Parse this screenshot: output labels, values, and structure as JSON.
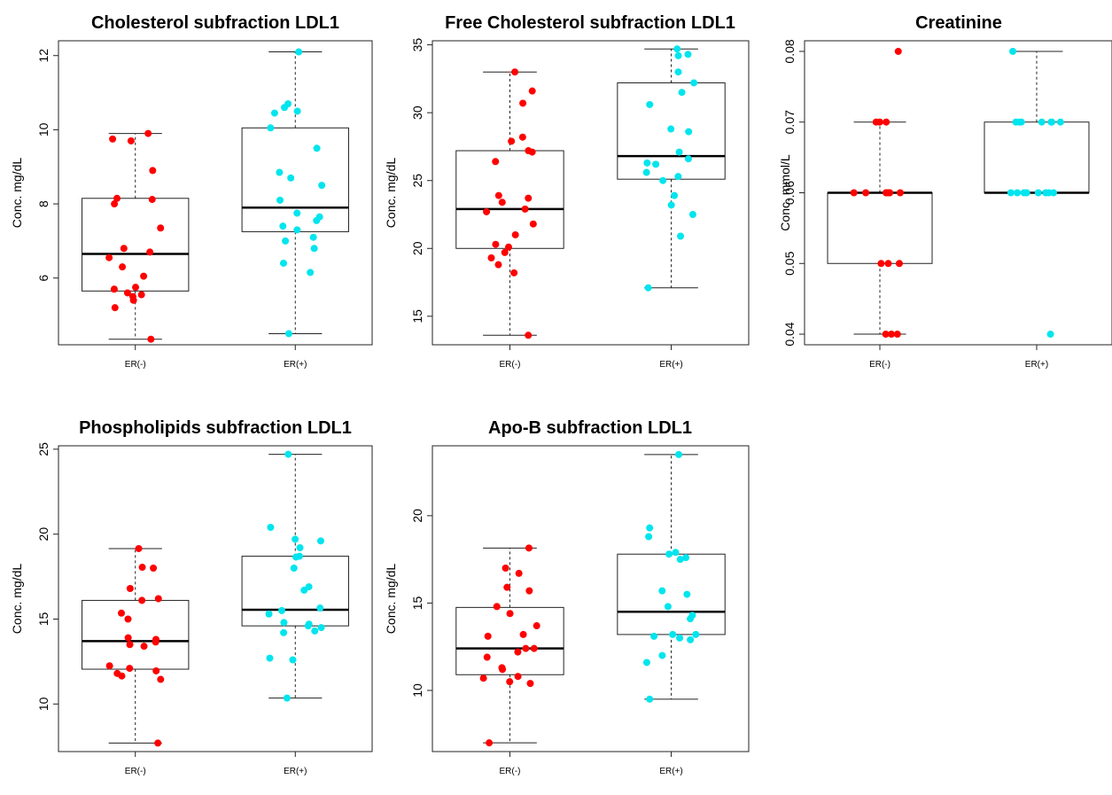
{
  "colors": {
    "er_neg": "#ff0000",
    "er_pos": "#00e5ee"
  },
  "chart_data": [
    {
      "type": "boxplot",
      "title": "Cholesterol subfraction LDL1",
      "ylabel": "Conc. mg/dL",
      "categories": [
        "ER(-)",
        "ER(+)"
      ],
      "ylim": [
        4.2,
        12.4
      ],
      "yticks": [
        6,
        8,
        10,
        12
      ],
      "boxes": [
        {
          "name": "ER(-)",
          "min": 4.35,
          "q1": 5.65,
          "median": 6.65,
          "q3": 8.15,
          "max": 9.9,
          "points": [
            9.9,
            9.75,
            9.7,
            8.9,
            8.15,
            8.12,
            8.0,
            7.35,
            6.8,
            6.7,
            6.55,
            6.3,
            6.05,
            5.75,
            5.7,
            5.6,
            5.55,
            5.5,
            5.4,
            5.2,
            4.35
          ]
        },
        {
          "name": "ER(+)",
          "min": 4.5,
          "q1": 7.25,
          "median": 7.9,
          "q3": 10.05,
          "max": 12.1,
          "points": [
            12.1,
            10.7,
            10.6,
            10.5,
            10.45,
            10.05,
            9.5,
            8.85,
            8.7,
            8.5,
            8.1,
            7.75,
            7.65,
            7.55,
            7.4,
            7.3,
            7.1,
            7.0,
            6.8,
            6.4,
            6.15,
            4.5
          ]
        }
      ]
    },
    {
      "type": "boxplot",
      "title": "Free Cholesterol subfraction LDL1",
      "ylabel": "Conc. mg/dL",
      "categories": [
        "ER(-)",
        "ER(+)"
      ],
      "ylim": [
        12.9,
        35.3
      ],
      "yticks": [
        15,
        20,
        25,
        30,
        35
      ],
      "boxes": [
        {
          "name": "ER(-)",
          "min": 13.6,
          "q1": 20.0,
          "median": 22.9,
          "q3": 27.2,
          "max": 33.0,
          "points": [
            33.0,
            31.6,
            30.7,
            28.2,
            27.9,
            27.2,
            27.1,
            26.4,
            23.9,
            23.7,
            23.4,
            22.9,
            22.7,
            21.8,
            21.0,
            20.3,
            20.1,
            19.7,
            19.3,
            18.8,
            18.2,
            13.6
          ]
        },
        {
          "name": "ER(+)",
          "min": 17.1,
          "q1": 25.1,
          "median": 26.8,
          "q3": 32.2,
          "max": 34.7,
          "points": [
            34.7,
            34.3,
            34.2,
            33.0,
            32.2,
            31.5,
            30.6,
            28.8,
            28.6,
            27.1,
            26.6,
            26.3,
            26.2,
            25.6,
            25.3,
            25.0,
            23.9,
            23.2,
            22.5,
            20.9,
            17.1
          ]
        }
      ]
    },
    {
      "type": "boxplot",
      "title": "Creatinine",
      "ylabel": "Conc. mmol/L",
      "categories": [
        "ER(-)",
        "ER(+)"
      ],
      "ylim": [
        0.0385,
        0.0815
      ],
      "yticks": [
        0.04,
        0.05,
        0.06,
        0.07,
        0.08
      ],
      "ytick_labels": [
        "0.04",
        "0.05",
        "0.06",
        "0.07",
        "0.08"
      ],
      "boxes": [
        {
          "name": "ER(-)",
          "min": 0.04,
          "q1": 0.05,
          "median": 0.06,
          "q3": 0.06,
          "max": 0.07,
          "points": [
            0.08,
            0.07,
            0.07,
            0.07,
            0.06,
            0.06,
            0.06,
            0.06,
            0.06,
            0.06,
            0.06,
            0.05,
            0.05,
            0.05,
            0.04,
            0.04,
            0.04
          ]
        },
        {
          "name": "ER(+)",
          "min": 0.06,
          "q1": 0.06,
          "median": 0.06,
          "q3": 0.07,
          "max": 0.08,
          "points": [
            0.08,
            0.07,
            0.07,
            0.07,
            0.07,
            0.07,
            0.07,
            0.07,
            0.06,
            0.06,
            0.06,
            0.06,
            0.06,
            0.06,
            0.06,
            0.06,
            0.04
          ]
        }
      ]
    },
    {
      "type": "boxplot",
      "title": "Phospholipids subfraction LDL1",
      "ylabel": "Conc. mg/dL",
      "categories": [
        "ER(-)",
        "ER(+)"
      ],
      "ylim": [
        7.2,
        25.2
      ],
      "yticks": [
        10,
        15,
        20,
        25
      ],
      "boxes": [
        {
          "name": "ER(-)",
          "min": 7.7,
          "q1": 12.05,
          "median": 13.7,
          "q3": 16.1,
          "max": 19.15,
          "points": [
            19.15,
            18.05,
            18.0,
            16.8,
            16.2,
            16.1,
            15.35,
            15.0,
            13.9,
            13.8,
            13.65,
            13.5,
            13.4,
            12.25,
            12.1,
            11.95,
            11.8,
            11.65,
            11.45,
            7.7
          ]
        },
        {
          "name": "ER(+)",
          "min": 10.35,
          "q1": 14.6,
          "median": 15.55,
          "q3": 18.7,
          "max": 24.7,
          "points": [
            24.7,
            20.4,
            19.7,
            19.6,
            19.2,
            18.7,
            18.65,
            18.0,
            16.9,
            16.7,
            15.65,
            15.5,
            15.3,
            14.8,
            14.7,
            14.6,
            14.5,
            14.3,
            14.2,
            12.7,
            12.6,
            10.35
          ]
        }
      ]
    },
    {
      "type": "boxplot",
      "title": "Apo-B subfraction LDL1",
      "ylabel": "Conc. mg/dL",
      "categories": [
        "ER(-)",
        "ER(+)"
      ],
      "ylim": [
        6.5,
        24.0
      ],
      "yticks": [
        10,
        15,
        20
      ],
      "boxes": [
        {
          "name": "ER(-)",
          "min": 7.0,
          "q1": 10.9,
          "median": 12.4,
          "q3": 14.75,
          "max": 18.15,
          "points": [
            18.15,
            17.0,
            16.7,
            15.9,
            15.7,
            14.8,
            14.4,
            13.7,
            13.2,
            13.1,
            12.4,
            12.4,
            12.2,
            11.9,
            11.3,
            11.2,
            10.8,
            10.7,
            10.5,
            10.4,
            7.0
          ]
        },
        {
          "name": "ER(+)",
          "min": 9.5,
          "q1": 13.2,
          "median": 14.5,
          "q3": 17.8,
          "max": 23.5,
          "points": [
            23.5,
            19.3,
            18.8,
            17.9,
            17.8,
            17.6,
            17.5,
            15.7,
            15.5,
            14.8,
            14.3,
            14.1,
            13.2,
            13.2,
            13.1,
            13.0,
            12.9,
            12.0,
            11.6,
            9.5
          ]
        }
      ]
    }
  ]
}
